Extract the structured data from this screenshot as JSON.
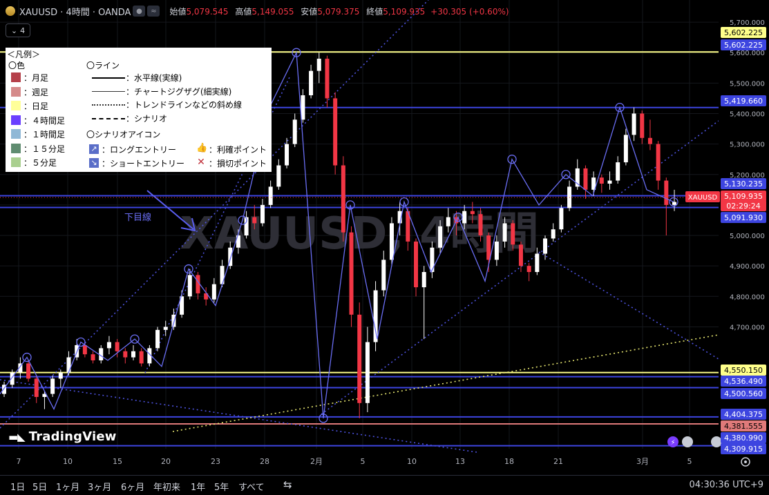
{
  "header": {
    "symbol": "XAUUSD · 4時間 · OANDA",
    "badge": "≈",
    "open_label": "始値",
    "open_value": "5,079.545",
    "high_label": "高値",
    "high_value": "5,149.055",
    "low_label": "安値",
    "low_value": "5,079.375",
    "close_label": "終値",
    "close_value": "5,109.935",
    "change": "+30.305 (+0.60%)"
  },
  "indicator_count": "4",
  "watermark": "XAUUSD, 4時間",
  "annotation": "下目線",
  "legend": {
    "title": "＜凡例＞",
    "color_heading": "〇色",
    "colors": [
      {
        "label": "：月足",
        "color": "#b5404a"
      },
      {
        "label": "：週足",
        "color": "#d58a8a"
      },
      {
        "label": "：日足",
        "color": "#ffff99"
      },
      {
        "label": "：４時間足",
        "color": "#6a3fff"
      },
      {
        "label": "：１時間足",
        "color": "#8fb8d6"
      },
      {
        "label": "：１５分足",
        "color": "#5f8c70"
      },
      {
        "label": "：５分足",
        "color": "#a9cf8f"
      }
    ],
    "line_heading": "〇ライン",
    "lines": [
      {
        "label": "：水平線(実線)",
        "style": "solid-thick"
      },
      {
        "label": "：チャートジグザグ(細実線)",
        "style": "solid-thin"
      },
      {
        "label": "：トレンドラインなどの斜め線",
        "style": "dotted"
      },
      {
        "label": "：シナリオ",
        "style": "dashed"
      }
    ],
    "icon_heading": "〇シナリオアイコン",
    "icons": [
      {
        "label": "：ロングエントリー",
        "icon": "long-entry-arrow-icon"
      },
      {
        "label": "：ショートエントリー",
        "icon": "short-entry-arrow-icon"
      },
      {
        "label": "：利確ポイント",
        "icon": "thumbs-up-icon"
      },
      {
        "label": "：損切ポイント",
        "icon": "cross-icon"
      }
    ]
  },
  "price_boxes": [
    {
      "value": "5,602.225",
      "bg": "#ffff8a",
      "fg": "#000000"
    },
    {
      "value": "5,602.225",
      "bg": "#3d45e0",
      "fg": "#ffffff"
    },
    {
      "value": "5,419.660",
      "bg": "#3d45e0",
      "fg": "#ffffff"
    },
    {
      "value": "5,130.235",
      "bg": "#3d45e0",
      "fg": "#ffffff"
    },
    {
      "value": "5,109.935",
      "bg": "#f23645",
      "fg": "#ffffff"
    },
    {
      "value": "02:29:24",
      "bg": "#f23645",
      "fg": "#ffffff"
    },
    {
      "value": "5,091.930",
      "bg": "#3d45e0",
      "fg": "#ffffff"
    },
    {
      "value": "4,550.150",
      "bg": "#ffff8a",
      "fg": "#000000"
    },
    {
      "value": "4,536.490",
      "bg": "#3d45e0",
      "fg": "#ffffff"
    },
    {
      "value": "4,500.560",
      "bg": "#3d45e0",
      "fg": "#ffffff"
    },
    {
      "value": "4,404.375",
      "bg": "#3d45e0",
      "fg": "#ffffff"
    },
    {
      "value": "4,381.555",
      "bg": "#e07a7a",
      "fg": "#000000"
    },
    {
      "value": "4,380.990",
      "bg": "#3d45e0",
      "fg": "#ffffff"
    },
    {
      "value": "4,309.915",
      "bg": "#3d45e0",
      "fg": "#ffffff"
    }
  ],
  "symbol_tag": "XAUUSD",
  "logo": "TradingView",
  "bottom": {
    "ranges": [
      "1日",
      "5日",
      "1ヶ月",
      "3ヶ月",
      "6ヶ月",
      "年初来",
      "1年",
      "5年",
      "すべて"
    ],
    "clock": "04:30:36 UTC+9"
  },
  "chart_data": {
    "type": "candlestick",
    "symbol": "XAUUSD",
    "timeframe": "4時間",
    "ylim": [
      4300,
      5750
    ],
    "y_ticks": [
      4700,
      4800,
      4900,
      5000,
      5100,
      5200,
      5300,
      5400,
      5500,
      5600,
      5700
    ],
    "y_tick_labels": [
      "4,700.000",
      "4,800.000",
      "4,900.000",
      "5,000.000",
      "5,100.000",
      "5,200.000",
      "5,300.000",
      "5,400.000",
      "5,500.000",
      "5,600.000",
      "5,700.000"
    ],
    "x_ticks": [
      "7",
      "10",
      "15",
      "20",
      "23",
      "28",
      "2月",
      "5",
      "10",
      "13",
      "18",
      "21",
      "3月",
      "5"
    ],
    "horizontal_lines": [
      {
        "price": 5602.225,
        "color": "#ffff8a"
      },
      {
        "price": 5419.66,
        "color": "#3d45e0"
      },
      {
        "price": 5130.235,
        "color": "#3d45e0"
      },
      {
        "price": 5091.93,
        "color": "#3d45e0"
      },
      {
        "price": 4550.15,
        "color": "#ffff8a"
      },
      {
        "price": 4536.49,
        "color": "#3d45e0"
      },
      {
        "price": 4500.56,
        "color": "#3d45e0"
      },
      {
        "price": 4404.375,
        "color": "#3d45e0"
      },
      {
        "price": 4381.555,
        "color": "#e07a7a"
      },
      {
        "price": 4309.915,
        "color": "#3d45e0"
      }
    ],
    "last_price": 5109.935,
    "zigzag": [
      4480,
      4600,
      4430,
      4650,
      4590,
      4660,
      4570,
      4890,
      4770,
      5050,
      5420,
      5600,
      4400,
      5100,
      4660,
      5110,
      4880,
      5060,
      4850,
      5250,
      5100,
      5200,
      5130,
      5420,
      5150,
      5110
    ],
    "candles": [
      [
        4480,
        4520,
        4470,
        4510
      ],
      [
        4510,
        4560,
        4500,
        4550
      ],
      [
        4550,
        4600,
        4530,
        4580
      ],
      [
        4580,
        4590,
        4520,
        4530
      ],
      [
        4530,
        4540,
        4450,
        4470
      ],
      [
        4470,
        4490,
        4430,
        4480
      ],
      [
        4480,
        4540,
        4470,
        4530
      ],
      [
        4530,
        4560,
        4500,
        4550
      ],
      [
        4550,
        4620,
        4540,
        4600
      ],
      [
        4600,
        4660,
        4590,
        4640
      ],
      [
        4640,
        4650,
        4600,
        4610
      ],
      [
        4610,
        4620,
        4580,
        4590
      ],
      [
        4590,
        4640,
        4580,
        4630
      ],
      [
        4630,
        4670,
        4610,
        4650
      ],
      [
        4650,
        4660,
        4600,
        4620
      ],
      [
        4620,
        4630,
        4580,
        4600
      ],
      [
        4600,
        4640,
        4590,
        4620
      ],
      [
        4620,
        4630,
        4570,
        4580
      ],
      [
        4580,
        4640,
        4570,
        4630
      ],
      [
        4630,
        4700,
        4620,
        4690
      ],
      [
        4690,
        4720,
        4670,
        4700
      ],
      [
        4700,
        4760,
        4690,
        4740
      ],
      [
        4740,
        4820,
        4730,
        4800
      ],
      [
        4800,
        4890,
        4790,
        4870
      ],
      [
        4870,
        4880,
        4790,
        4810
      ],
      [
        4810,
        4830,
        4770,
        4790
      ],
      [
        4790,
        4860,
        4780,
        4840
      ],
      [
        4840,
        4920,
        4830,
        4900
      ],
      [
        4900,
        4980,
        4890,
        4960
      ],
      [
        4960,
        5020,
        4940,
        5000
      ],
      [
        5000,
        5080,
        4990,
        5060
      ],
      [
        5060,
        5100,
        5020,
        5040
      ],
      [
        5040,
        5120,
        5030,
        5100
      ],
      [
        5100,
        5180,
        5090,
        5160
      ],
      [
        5160,
        5250,
        5150,
        5230
      ],
      [
        5230,
        5320,
        5220,
        5300
      ],
      [
        5300,
        5400,
        5290,
        5380
      ],
      [
        5380,
        5480,
        5370,
        5460
      ],
      [
        5460,
        5560,
        5450,
        5540
      ],
      [
        5540,
        5600,
        5500,
        5580
      ],
      [
        5580,
        5590,
        5420,
        5450
      ],
      [
        5450,
        5470,
        5200,
        5230
      ],
      [
        5230,
        5260,
        4980,
        5010
      ],
      [
        5010,
        5030,
        4700,
        4740
      ],
      [
        4740,
        4780,
        4400,
        4450
      ],
      [
        4450,
        4700,
        4420,
        4650
      ],
      [
        4650,
        4850,
        4620,
        4820
      ],
      [
        4820,
        4950,
        4800,
        4920
      ],
      [
        4920,
        5060,
        4900,
        5040
      ],
      [
        5040,
        5110,
        5000,
        5080
      ],
      [
        5080,
        5090,
        4950,
        4980
      ],
      [
        4980,
        4990,
        4800,
        4830
      ],
      [
        4830,
        4900,
        4660,
        4880
      ],
      [
        4880,
        4980,
        4860,
        4960
      ],
      [
        4960,
        5050,
        4940,
        5030
      ],
      [
        5030,
        5090,
        5010,
        5060
      ],
      [
        5060,
        5080,
        5000,
        5040
      ],
      [
        5040,
        5100,
        5020,
        5080
      ],
      [
        5080,
        5110,
        5040,
        5070
      ],
      [
        5070,
        5090,
        4980,
        5000
      ],
      [
        5000,
        5010,
        4880,
        4920
      ],
      [
        4920,
        5000,
        4900,
        4980
      ],
      [
        4980,
        5060,
        4960,
        5040
      ],
      [
        5040,
        5050,
        4950,
        4970
      ],
      [
        4970,
        4980,
        4880,
        4900
      ],
      [
        4900,
        4910,
        4850,
        4880
      ],
      [
        4880,
        4960,
        4870,
        4940
      ],
      [
        4940,
        5000,
        4920,
        4990
      ],
      [
        4990,
        5040,
        4980,
        5020
      ],
      [
        5020,
        5100,
        5010,
        5090
      ],
      [
        5090,
        5180,
        5080,
        5160
      ],
      [
        5160,
        5250,
        5150,
        5220
      ],
      [
        5220,
        5230,
        5120,
        5150
      ],
      [
        5150,
        5210,
        5130,
        5190
      ],
      [
        5190,
        5200,
        5140,
        5170
      ],
      [
        5170,
        5210,
        5150,
        5180
      ],
      [
        5180,
        5260,
        5170,
        5240
      ],
      [
        5240,
        5350,
        5230,
        5330
      ],
      [
        5330,
        5420,
        5310,
        5400
      ],
      [
        5400,
        5410,
        5300,
        5320
      ],
      [
        5320,
        5380,
        5280,
        5300
      ],
      [
        5300,
        5310,
        5150,
        5180
      ],
      [
        5180,
        5190,
        5000,
        5100
      ],
      [
        5100,
        5150,
        5080,
        5110
      ]
    ]
  }
}
